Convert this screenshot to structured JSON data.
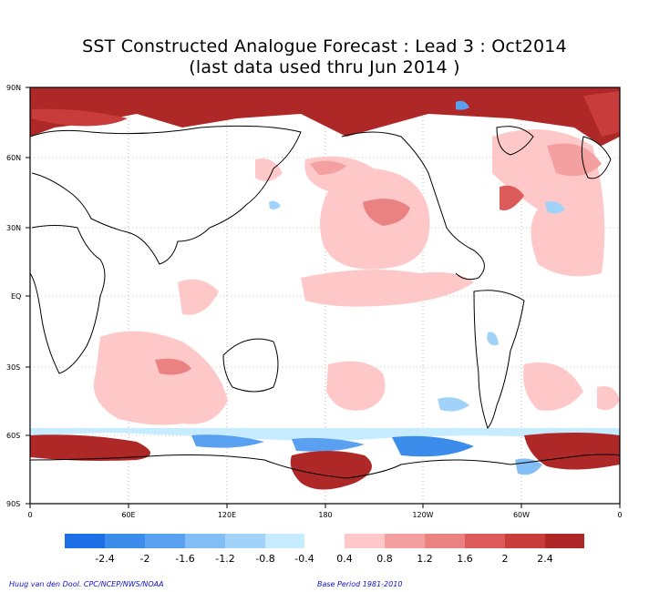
{
  "title": {
    "line1": "SST Constructed Analogue Forecast : Lead 3 : Oct2014",
    "line2": "(last data used thru Jun 2014 )"
  },
  "axes": {
    "y_ticks": [
      "90N",
      "60N",
      "30N",
      "EQ",
      "30S",
      "60S",
      "90S"
    ],
    "x_ticks": [
      "0",
      "60E",
      "120E",
      "180",
      "120W",
      "60W",
      "0"
    ]
  },
  "colorbar": {
    "negative_colors": [
      "#1e6ee6",
      "#3c8ceb",
      "#5aa0f0",
      "#82bef5",
      "#a0d2fa",
      "#c8ecff"
    ],
    "positive_colors": [
      "#ffc8c8",
      "#f5a0a0",
      "#eb8282",
      "#dc5a5a",
      "#c83c3c",
      "#af2828"
    ],
    "negative_labels": [
      "-2.4",
      "-2",
      "-1.6",
      "-1.2",
      "-0.8",
      "-0.4"
    ],
    "positive_labels": [
      "0.4",
      "0.8",
      "1.2",
      "1.6",
      "2",
      "2.4"
    ]
  },
  "credits": {
    "left": "Huug van den Dool. CPC/NCEP/NWS/NOAA",
    "right": "Base Period 1981-2010"
  }
}
